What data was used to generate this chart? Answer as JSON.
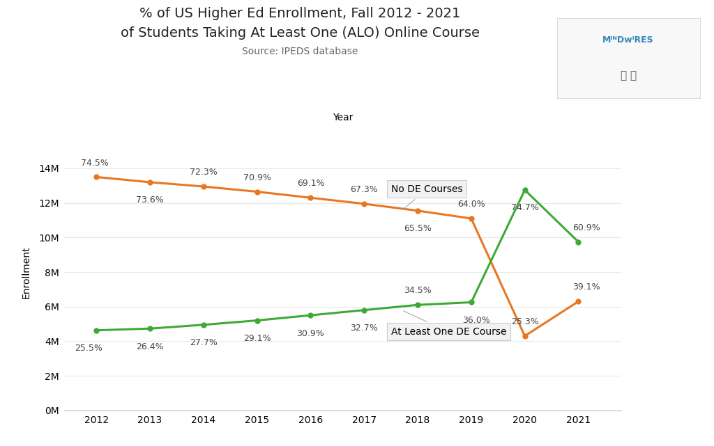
{
  "title_line1": "% of US Higher Ed Enrollment, Fall 2012 - 2021",
  "title_line2": "of Students Taking At Least One (ALO) Online Course",
  "subtitle": "Source: IPEDS database",
  "year_label": "Year",
  "ylabel": "Enrollment",
  "years": [
    2012,
    2013,
    2014,
    2015,
    2016,
    2017,
    2018,
    2019,
    2020,
    2021
  ],
  "no_de_values": [
    13.5,
    13.2,
    12.95,
    12.65,
    12.3,
    11.95,
    11.55,
    11.1,
    4.3,
    6.3
  ],
  "no_de_pcts": [
    "74.5%",
    "73.6%",
    "72.3%",
    "70.9%",
    "69.1%",
    "67.3%",
    "65.5%",
    "64.0%",
    "25.3%",
    "39.1%"
  ],
  "alo_de_values": [
    4.63,
    4.73,
    4.95,
    5.2,
    5.5,
    5.8,
    6.1,
    6.25,
    12.75,
    9.75
  ],
  "alo_de_pcts": [
    "25.5%",
    "26.4%",
    "27.7%",
    "29.1%",
    "30.9%",
    "32.7%",
    "34.5%",
    "36.0%",
    "74.7%",
    "60.9%"
  ],
  "no_de_color": "#E87722",
  "alo_de_color": "#3DAA35",
  "no_de_label": "No DE Courses",
  "alo_de_label": "At Least One DE Course",
  "ylim": [
    0,
    16000000
  ],
  "yticks": [
    0,
    2000000,
    4000000,
    6000000,
    8000000,
    10000000,
    12000000,
    14000000
  ],
  "ytick_labels": [
    "0M",
    "2M",
    "4M",
    "6M",
    "8M",
    "10M",
    "12M",
    "14M"
  ],
  "background_color": "#ffffff",
  "grid_color": "#e8e8e8",
  "annotation_box_facecolor": "#f2f2f2",
  "annotation_box_edgecolor": "#cccccc",
  "mindwires_text": "MᴵᴺDᴡᴵRES",
  "title_fontsize": 14,
  "subtitle_fontsize": 10,
  "tick_fontsize": 10,
  "annot_fontsize": 9,
  "label_fontsize": 10
}
